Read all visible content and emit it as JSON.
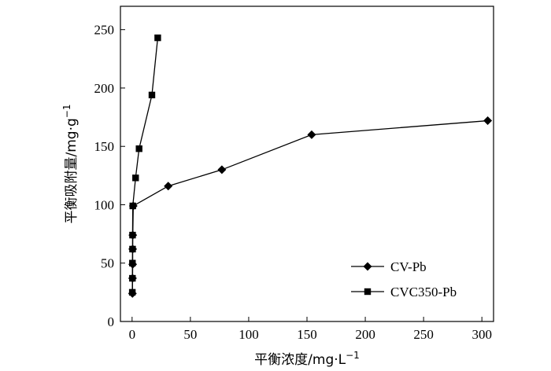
{
  "chart_data": {
    "type": "line",
    "xlabel": "平衡浓度/mg·L",
    "xlabel_sup": "−1",
    "ylabel": "平衡吸附量/mg·g",
    "ylabel_sup": "−1",
    "xlim": [
      -10,
      310
    ],
    "ylim": [
      0,
      270
    ],
    "xticks": [
      0,
      50,
      100,
      150,
      200,
      250,
      300
    ],
    "yticks": [
      0,
      50,
      100,
      150,
      200,
      250
    ],
    "grid": false,
    "legend_position": "bottom-right",
    "series": [
      {
        "name": "CV-Pb",
        "marker": "diamond",
        "color": "#000000",
        "points": [
          {
            "x": 0.3,
            "y": 24
          },
          {
            "x": 0.4,
            "y": 37
          },
          {
            "x": 0.5,
            "y": 49
          },
          {
            "x": 0.5,
            "y": 62
          },
          {
            "x": 0.6,
            "y": 74
          },
          {
            "x": 1.0,
            "y": 99
          },
          {
            "x": 31,
            "y": 116
          },
          {
            "x": 77,
            "y": 130
          },
          {
            "x": 154,
            "y": 160
          },
          {
            "x": 305,
            "y": 172
          }
        ]
      },
      {
        "name": "CVC350-Pb",
        "marker": "square",
        "color": "#000000",
        "points": [
          {
            "x": 0.2,
            "y": 25
          },
          {
            "x": 0.3,
            "y": 37
          },
          {
            "x": 0.3,
            "y": 50
          },
          {
            "x": 0.4,
            "y": 62
          },
          {
            "x": 0.4,
            "y": 74
          },
          {
            "x": 0.6,
            "y": 99
          },
          {
            "x": 3,
            "y": 123
          },
          {
            "x": 6,
            "y": 148
          },
          {
            "x": 17,
            "y": 194
          },
          {
            "x": 22,
            "y": 243
          }
        ]
      }
    ]
  }
}
